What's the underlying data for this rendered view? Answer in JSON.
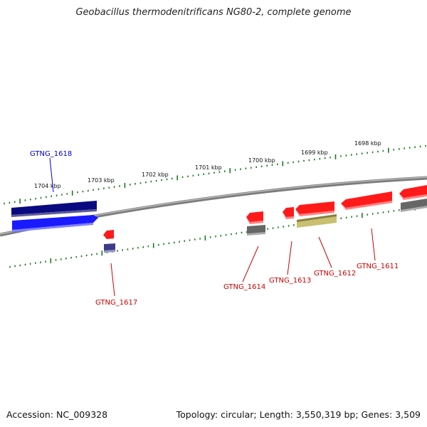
{
  "title": "Geobacillus thermodenitrificans NG80-2, complete genome",
  "footer": {
    "accession": "Accession: NC_009328",
    "summary": "Topology: circular; Length: 3,550,319 bp; Genes: 3,509"
  },
  "scale_labels": [
    "1704 kbp",
    "1703 kbp",
    "1702 kbp",
    "1701 kbp",
    "1700 kbp",
    "1699 kbp",
    "1698 kbp"
  ],
  "gene_labels": {
    "forward": [
      "GTNG_1618"
    ],
    "reverse": [
      "GTNG_1617",
      "GTNG_1614",
      "GTNG_1613",
      "GTNG_1612",
      "GTNG_1611"
    ]
  },
  "colors": {
    "forward_label": "#0000cc",
    "reverse_label": "#cc0000",
    "tick": "#1a7a1a",
    "backbone": "#888888",
    "forward_gene": "#1a1aff",
    "forward_cds": "#0a0a80",
    "reverse_gene": "#ff1a1a",
    "grey_cds": "#666666",
    "khaki_cds": "#c8c070",
    "purple_cds": "#3c3c88"
  }
}
